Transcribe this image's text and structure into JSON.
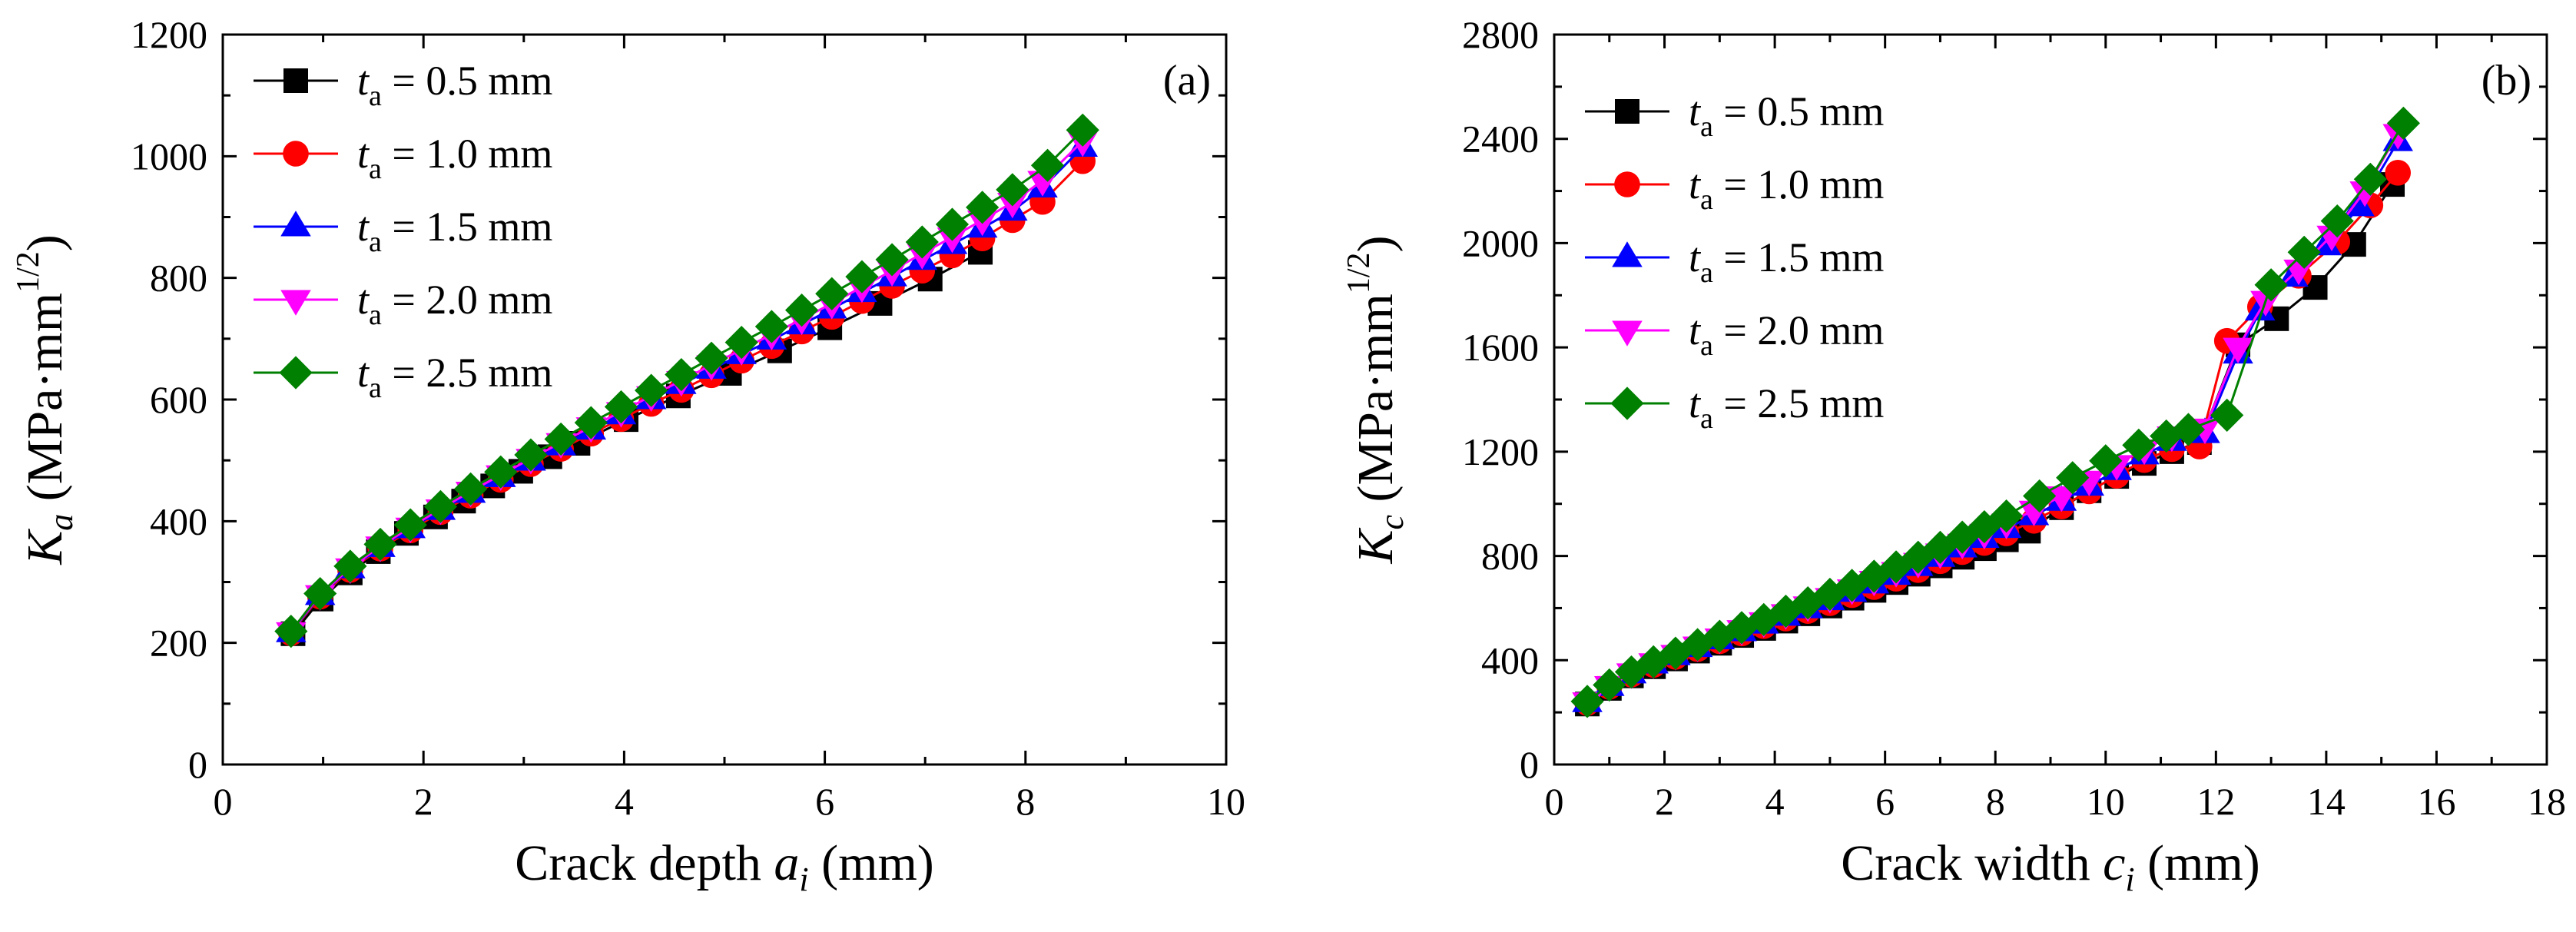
{
  "chart_data": [
    {
      "type": "line",
      "panel_label": "(a)",
      "xlabel": {
        "main": "Crack depth ",
        "var": "a",
        "sub": "i",
        "unit": " (mm)"
      },
      "ylabel": {
        "var": "K",
        "sub": "a",
        "unit_open": " (MPa·mm",
        "sup": "1/2",
        "unit_close": ")"
      },
      "xlim": [
        0,
        10
      ],
      "ylim": [
        0,
        1200
      ],
      "xticks": [
        0,
        2,
        4,
        6,
        8,
        10
      ],
      "yticks": [
        0,
        200,
        400,
        600,
        800,
        1000,
        1200
      ],
      "xtick_labels": [
        "0",
        "2",
        "4",
        "6",
        "8",
        "10"
      ],
      "ytick_labels": [
        "0",
        "200",
        "400",
        "600",
        "800",
        "1000",
        "1200"
      ],
      "legend_position": "top-left",
      "grid": false,
      "series": [
        {
          "name": "t_a = 0.5 mm",
          "label_var": "t",
          "label_sub": "a",
          "label_value": " = 0.5 mm",
          "marker": "square",
          "color": "#000000",
          "x": [
            0.7,
            0.98,
            1.27,
            1.55,
            1.83,
            2.12,
            2.4,
            2.69,
            2.97,
            3.26,
            3.54,
            4.02,
            4.54,
            5.05,
            5.55,
            6.05,
            6.55,
            7.05,
            7.55
          ],
          "y": [
            215,
            272,
            315,
            350,
            380,
            407,
            433,
            458,
            482,
            506,
            528,
            567,
            606,
            643,
            680,
            718,
            758,
            798,
            842
          ]
        },
        {
          "name": "t_a = 1.0 mm",
          "label_var": "t",
          "label_sub": "a",
          "label_value": " = 1.0 mm",
          "marker": "circle",
          "color": "#ff0000",
          "x": [
            0.68,
            0.97,
            1.27,
            1.57,
            1.87,
            2.17,
            2.47,
            2.77,
            3.07,
            3.37,
            3.67,
            3.97,
            4.27,
            4.57,
            4.87,
            5.17,
            5.47,
            5.77,
            6.07,
            6.37,
            6.67,
            6.97,
            7.27,
            7.57,
            7.87,
            8.17,
            8.57
          ],
          "y": [
            216,
            276,
            320,
            355,
            385,
            415,
            442,
            468,
            494,
            519,
            544,
            568,
            593,
            616,
            640,
            664,
            688,
            712,
            736,
            762,
            787,
            812,
            837,
            865,
            895,
            925,
            992
          ]
        },
        {
          "name": "t_a = 1.5 mm",
          "label_var": "t",
          "label_sub": "a",
          "label_value": " = 1.5 mm",
          "marker": "triangle-up",
          "color": "#0000ff",
          "x": [
            0.68,
            0.97,
            1.27,
            1.57,
            1.87,
            2.17,
            2.47,
            2.77,
            3.07,
            3.37,
            3.67,
            3.97,
            4.27,
            4.57,
            4.87,
            5.17,
            5.47,
            5.77,
            6.07,
            6.37,
            6.67,
            6.97,
            7.27,
            7.57,
            7.87,
            8.17,
            8.57
          ],
          "y": [
            217,
            278,
            322,
            357,
            388,
            418,
            446,
            472,
            499,
            524,
            550,
            575,
            600,
            625,
            650,
            674,
            698,
            723,
            749,
            776,
            802,
            829,
            855,
            882,
            910,
            948,
            1015
          ]
        },
        {
          "name": "t_a = 2.0 mm",
          "label_var": "t",
          "label_sub": "a",
          "label_value": " = 2.0 mm",
          "marker": "triangle-down",
          "color": "#ff00ff",
          "x": [
            0.68,
            0.97,
            1.27,
            1.57,
            1.87,
            2.17,
            2.47,
            2.77,
            3.07,
            3.37,
            3.67,
            3.97,
            4.27,
            4.57,
            4.87,
            5.17,
            5.47,
            5.77,
            6.07,
            6.37,
            6.67,
            6.97,
            7.27,
            7.57,
            7.87,
            8.17,
            8.57
          ],
          "y": [
            218,
            279,
            323,
            359,
            390,
            420,
            449,
            476,
            503,
            529,
            555,
            580,
            606,
            631,
            657,
            682,
            707,
            732,
            758,
            785,
            812,
            840,
            867,
            895,
            924,
            960,
            1025
          ]
        },
        {
          "name": "t_a = 2.5 mm",
          "label_var": "t",
          "label_sub": "a",
          "label_value": " = 2.5 mm",
          "marker": "diamond",
          "color": "#008000",
          "x": [
            0.68,
            0.97,
            1.27,
            1.57,
            1.87,
            2.17,
            2.47,
            2.77,
            3.07,
            3.37,
            3.67,
            3.97,
            4.27,
            4.57,
            4.87,
            5.17,
            5.47,
            5.77,
            6.07,
            6.37,
            6.67,
            6.97,
            7.27,
            7.57,
            7.87,
            8.22,
            8.57
          ],
          "y": [
            219,
            281,
            326,
            362,
            394,
            424,
            453,
            481,
            509,
            535,
            562,
            588,
            615,
            641,
            668,
            694,
            720,
            747,
            774,
            802,
            830,
            859,
            888,
            916,
            945,
            985,
            1043
          ]
        }
      ]
    },
    {
      "type": "line",
      "panel_label": "(b)",
      "xlabel": {
        "main": "Crack width ",
        "var": "c",
        "sub": "i",
        "unit": " (mm)"
      },
      "ylabel": {
        "var": "K",
        "sub": "c",
        "unit_open": " (MPa·mm",
        "sup": "1/2",
        "unit_close": ")"
      },
      "xlim": [
        0,
        18
      ],
      "ylim": [
        0,
        2800
      ],
      "xticks": [
        0,
        2,
        4,
        6,
        8,
        10,
        12,
        14,
        16,
        18
      ],
      "yticks": [
        0,
        400,
        800,
        1200,
        1600,
        2000,
        2400,
        2800
      ],
      "xtick_labels": [
        "0",
        "2",
        "4",
        "6",
        "8",
        "10",
        "12",
        "14",
        "16",
        "18"
      ],
      "ytick_labels": [
        "0",
        "400",
        "800",
        "1200",
        "1600",
        "2000",
        "2400",
        "2800"
      ],
      "legend_position": "top-left",
      "grid": false,
      "series": [
        {
          "name": "t_a = 0.5 mm",
          "label_var": "t",
          "label_sub": "a",
          "label_value": " = 0.5 mm",
          "marker": "square",
          "color": "#000000",
          "x": [
            0.6,
            1.0,
            1.4,
            1.8,
            2.2,
            2.6,
            3.0,
            3.4,
            3.8,
            4.2,
            4.6,
            5.0,
            5.4,
            5.8,
            6.2,
            6.6,
            7.0,
            7.4,
            7.8,
            8.2,
            8.6,
            9.2,
            9.7,
            10.2,
            10.7,
            11.2,
            11.7,
            12.4,
            13.1,
            13.8,
            14.5,
            15.2
          ],
          "y": [
            232,
            292,
            340,
            375,
            405,
            435,
            465,
            495,
            522,
            550,
            578,
            608,
            638,
            668,
            698,
            730,
            762,
            795,
            828,
            862,
            895,
            985,
            1050,
            1105,
            1155,
            1200,
            1235,
            1610,
            1710,
            1830,
            1995,
            2225
          ]
        },
        {
          "name": "t_a = 1.0 mm",
          "label_var": "t",
          "label_sub": "a",
          "label_value": " = 1.0 mm",
          "marker": "circle",
          "color": "#ff0000",
          "x": [
            0.6,
            1.0,
            1.4,
            1.8,
            2.2,
            2.6,
            3.0,
            3.4,
            3.8,
            4.2,
            4.6,
            5.0,
            5.4,
            5.8,
            6.2,
            6.6,
            7.0,
            7.4,
            7.8,
            8.2,
            8.7,
            9.2,
            9.7,
            10.2,
            10.7,
            11.2,
            11.7,
            12.2,
            12.8,
            13.5,
            14.2,
            14.8,
            15.3
          ],
          "y": [
            236,
            298,
            345,
            382,
            413,
            443,
            473,
            503,
            531,
            560,
            589,
            619,
            650,
            681,
            713,
            746,
            780,
            815,
            850,
            887,
            935,
            990,
            1048,
            1108,
            1168,
            1210,
            1220,
            1625,
            1755,
            1875,
            2005,
            2145,
            2270
          ]
        },
        {
          "name": "t_a = 1.5 mm",
          "label_var": "t",
          "label_sub": "a",
          "label_value": " = 1.5 mm",
          "marker": "triangle-up",
          "color": "#0000ff",
          "x": [
            0.6,
            1.0,
            1.4,
            1.8,
            2.2,
            2.6,
            3.0,
            3.4,
            3.8,
            4.2,
            4.6,
            5.0,
            5.4,
            5.8,
            6.2,
            6.6,
            7.0,
            7.4,
            7.8,
            8.2,
            8.7,
            9.2,
            9.7,
            10.2,
            10.7,
            11.2,
            11.8,
            12.4,
            12.8,
            13.4,
            14.0,
            14.6,
            15.3
          ],
          "y": [
            238,
            300,
            348,
            386,
            418,
            449,
            479,
            510,
            539,
            569,
            598,
            629,
            661,
            693,
            726,
            760,
            795,
            831,
            868,
            906,
            955,
            1010,
            1068,
            1128,
            1188,
            1240,
            1270,
            1575,
            1740,
            1870,
            1990,
            2140,
            2390
          ]
        },
        {
          "name": "t_a = 2.0 mm",
          "label_var": "t",
          "label_sub": "a",
          "label_value": " = 2.0 mm",
          "marker": "triangle-down",
          "color": "#ff00ff",
          "x": [
            0.6,
            1.0,
            1.4,
            1.8,
            2.2,
            2.6,
            3.0,
            3.4,
            3.8,
            4.2,
            4.6,
            5.0,
            5.4,
            5.8,
            6.2,
            6.6,
            7.0,
            7.4,
            7.8,
            8.2,
            8.7,
            9.2,
            9.7,
            10.2,
            10.7,
            11.2,
            11.8,
            12.4,
            12.9,
            13.5,
            14.1,
            14.7,
            15.3
          ],
          "y": [
            240,
            302,
            351,
            390,
            422,
            454,
            485,
            517,
            547,
            578,
            608,
            640,
            673,
            706,
            740,
            775,
            811,
            848,
            886,
            925,
            975,
            1030,
            1090,
            1150,
            1210,
            1260,
            1290,
            1600,
            1780,
            1900,
            2030,
            2200,
            2420
          ]
        },
        {
          "name": "t_a = 2.5 mm",
          "label_var": "t",
          "label_sub": "a",
          "label_value": " = 2.5 mm",
          "marker": "diamond",
          "color": "#008000",
          "x": [
            0.6,
            1.0,
            1.4,
            1.8,
            2.2,
            2.6,
            3.0,
            3.4,
            3.8,
            4.2,
            4.6,
            5.0,
            5.4,
            5.8,
            6.2,
            6.6,
            7.0,
            7.4,
            7.8,
            8.2,
            8.8,
            9.4,
            10.0,
            10.6,
            11.1,
            11.5,
            12.2,
            13.0,
            13.6,
            14.2,
            14.8,
            15.4
          ],
          "y": [
            242,
            305,
            355,
            394,
            427,
            460,
            492,
            525,
            556,
            588,
            620,
            653,
            687,
            722,
            758,
            795,
            833,
            872,
            912,
            953,
            1030,
            1100,
            1165,
            1225,
            1260,
            1285,
            1340,
            1840,
            1965,
            2085,
            2245,
            2460
          ]
        }
      ]
    }
  ]
}
